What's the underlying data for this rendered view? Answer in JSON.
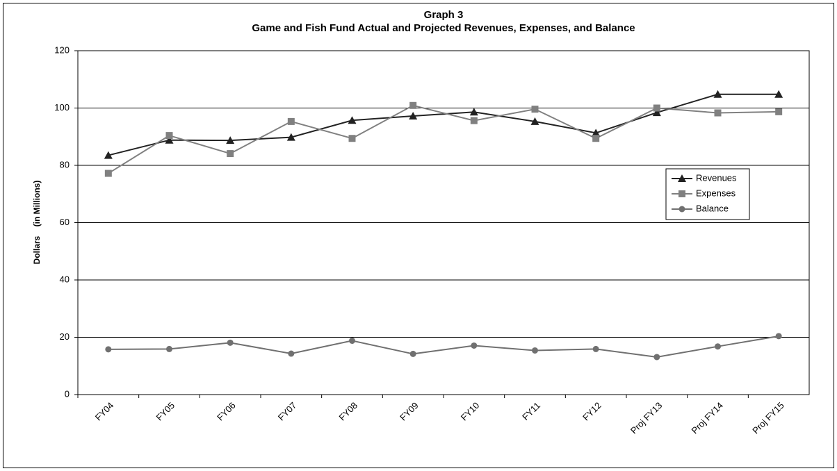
{
  "chart_data": {
    "type": "line",
    "title": "Graph 3",
    "subtitle": "Game and Fish Fund Actual and Projected Revenues, Expenses, and Balance",
    "y_label": "Dollars    (in Millions)",
    "categories": [
      "FY04",
      "FY05",
      "FY06",
      "FY07",
      "FY08",
      "FY09",
      "FY10",
      "FY11",
      "FY12",
      "Proj FY13",
      "Proj FY14",
      "Proj FY15"
    ],
    "series": [
      {
        "name": "Revenues",
        "color": "#222222",
        "marker": "triangle",
        "values": [
          83.5,
          88.8,
          88.7,
          89.8,
          95.7,
          97.2,
          98.6,
          95.3,
          91.3,
          98.4,
          104.8,
          104.8
        ]
      },
      {
        "name": "Expenses",
        "color": "#808080",
        "marker": "square",
        "values": [
          77.2,
          90.4,
          84.1,
          95.3,
          89.4,
          100.9,
          95.6,
          99.6,
          89.4,
          100.0,
          98.3,
          98.7
        ]
      },
      {
        "name": "Balance",
        "color": "#707070",
        "marker": "circle",
        "values": [
          15.8,
          15.9,
          18.1,
          14.3,
          18.8,
          14.2,
          17.1,
          15.4,
          15.9,
          13.1,
          16.8,
          20.4
        ]
      }
    ],
    "ylim": [
      0,
      120
    ],
    "yticks": [
      0,
      20,
      40,
      60,
      80,
      100,
      120
    ],
    "grid": true,
    "legend": "right"
  }
}
